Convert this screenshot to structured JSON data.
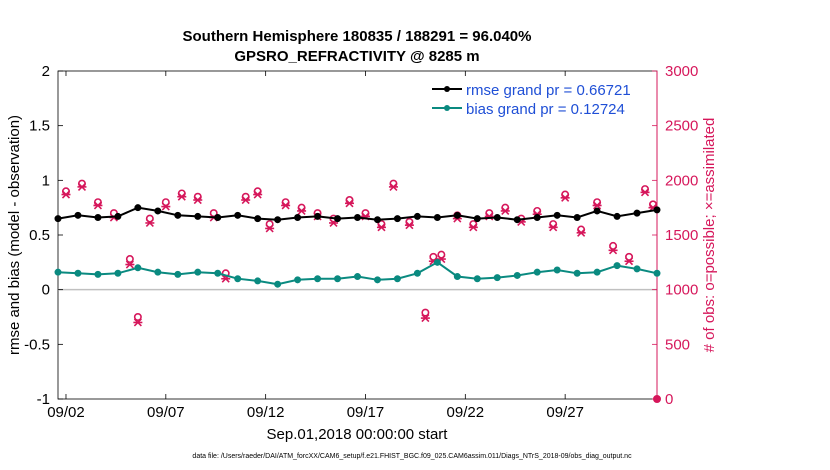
{
  "title_line1": "Southern Hemisphere 180835 / 188291 = 96.040%",
  "title_line2": "GPSRO_REFRACTIVITY @ 8285 m",
  "xlabel": "Sep.01,2018 00:00:00 start",
  "ylabel_left": "rmse and bias (model - observation)",
  "ylabel_right": "# of obs: o=possible; ×=assimilated",
  "footer": "data file: /Users/raeder/DAI/ATM_forcXX/CAM6_setup/f.e21.FHIST_BGC.f09_025.CAM6assim.011/Diags_NTrS_2018-09/obs_diag_output.nc",
  "legend": {
    "rmse": "rmse grand pr = 0.66721",
    "bias": "bias grand pr = 0.12724"
  },
  "colors": {
    "rmse": "#000000",
    "bias": "#0a8a80",
    "obs": "#d6175b",
    "legend_text": "#1f4fd6",
    "zero_line": "#c0c0c0"
  },
  "chart_data": {
    "type": "line",
    "x_unit": "day since Sep.01,2018 00:00",
    "x_ticks": [
      {
        "value": 1,
        "label": "09/02"
      },
      {
        "value": 6,
        "label": "09/07"
      },
      {
        "value": 11,
        "label": "09/12"
      },
      {
        "value": 16,
        "label": "09/17"
      },
      {
        "value": 21,
        "label": "09/22"
      },
      {
        "value": 26,
        "label": "09/27"
      }
    ],
    "xlim": [
      0.6,
      30.6
    ],
    "ylim_left": [
      -1,
      2
    ],
    "yticks_left": [
      {
        "value": -1,
        "label": "-1"
      },
      {
        "value": -0.5,
        "label": "-0.5"
      },
      {
        "value": 0,
        "label": "0"
      },
      {
        "value": 0.5,
        "label": "0.5"
      },
      {
        "value": 1,
        "label": "1"
      },
      {
        "value": 1.5,
        "label": "1.5"
      },
      {
        "value": 2,
        "label": "2"
      }
    ],
    "ylim_right": [
      0,
      3000
    ],
    "yticks_right": [
      {
        "value": 0,
        "label": "0"
      },
      {
        "value": 500,
        "label": "500"
      },
      {
        "value": 1000,
        "label": "1000"
      },
      {
        "value": 1500,
        "label": "1500"
      },
      {
        "value": 2000,
        "label": "2000"
      },
      {
        "value": 2500,
        "label": "2500"
      },
      {
        "value": 3000,
        "label": "3000"
      }
    ],
    "series": [
      {
        "name": "rmse",
        "axis": "left",
        "x": [
          0.6,
          1.6,
          2.6,
          3.6,
          4.6,
          5.6,
          6.6,
          7.6,
          8.6,
          9.6,
          10.6,
          11.6,
          12.6,
          13.6,
          14.6,
          15.6,
          16.6,
          17.6,
          18.6,
          19.6,
          20.6,
          21.6,
          22.6,
          23.6,
          24.6,
          25.6,
          26.6,
          27.6,
          28.6,
          29.6,
          30.6
        ],
        "values": [
          0.65,
          0.68,
          0.66,
          0.67,
          0.75,
          0.72,
          0.68,
          0.67,
          0.66,
          0.68,
          0.65,
          0.64,
          0.66,
          0.67,
          0.65,
          0.66,
          0.64,
          0.65,
          0.67,
          0.66,
          0.68,
          0.65,
          0.66,
          0.64,
          0.66,
          0.68,
          0.66,
          0.72,
          0.67,
          0.7,
          0.73
        ]
      },
      {
        "name": "bias",
        "axis": "left",
        "x": [
          0.6,
          1.6,
          2.6,
          3.6,
          4.6,
          5.6,
          6.6,
          7.6,
          8.6,
          9.6,
          10.6,
          11.6,
          12.6,
          13.6,
          14.6,
          15.6,
          16.6,
          17.6,
          18.6,
          19.6,
          20.6,
          21.6,
          22.6,
          23.6,
          24.6,
          25.6,
          26.6,
          27.6,
          28.6,
          29.6,
          30.6
        ],
        "values": [
          0.16,
          0.15,
          0.14,
          0.15,
          0.2,
          0.16,
          0.14,
          0.16,
          0.15,
          0.1,
          0.08,
          0.05,
          0.09,
          0.1,
          0.1,
          0.12,
          0.09,
          0.1,
          0.15,
          0.25,
          0.12,
          0.1,
          0.11,
          0.13,
          0.16,
          0.18,
          0.15,
          0.16,
          0.22,
          0.19,
          0.15
        ]
      },
      {
        "name": "obs possible",
        "axis": "right",
        "marker": "o",
        "x": [
          1.0,
          1.8,
          2.6,
          3.4,
          4.2,
          4.6,
          5.2,
          6.0,
          6.8,
          7.6,
          8.4,
          9.0,
          10.0,
          10.6,
          11.2,
          12.0,
          12.8,
          13.6,
          14.4,
          15.2,
          16.0,
          16.8,
          17.4,
          18.2,
          19.0,
          19.4,
          19.8,
          20.6,
          21.4,
          22.2,
          23.0,
          23.8,
          24.6,
          25.4,
          26.0,
          26.8,
          27.6,
          28.4,
          29.2,
          30.0,
          30.4
        ],
        "values": [
          1900,
          1970,
          1800,
          1700,
          1280,
          750,
          1650,
          1800,
          1880,
          1850,
          1700,
          1150,
          1850,
          1900,
          1600,
          1800,
          1750,
          1700,
          1650,
          1820,
          1700,
          1600,
          1970,
          1620,
          790,
          1300,
          1320,
          1680,
          1600,
          1700,
          1750,
          1650,
          1720,
          1600,
          1870,
          1550,
          1800,
          1400,
          1300,
          1920,
          1780
        ]
      },
      {
        "name": "obs assimilated",
        "axis": "right",
        "marker": "x",
        "x": [
          1.0,
          1.8,
          2.6,
          3.4,
          4.2,
          4.6,
          5.2,
          6.0,
          6.8,
          7.6,
          8.4,
          9.0,
          10.0,
          10.6,
          11.2,
          12.0,
          12.8,
          13.6,
          14.4,
          15.2,
          16.0,
          16.8,
          17.4,
          18.2,
          19.0,
          19.4,
          19.8,
          20.6,
          21.4,
          22.2,
          23.0,
          23.8,
          24.6,
          25.4,
          26.0,
          26.8,
          27.6,
          28.4,
          29.2,
          30.0,
          30.4
        ],
        "values": [
          1870,
          1940,
          1770,
          1660,
          1230,
          700,
          1610,
          1760,
          1850,
          1820,
          1660,
          1100,
          1820,
          1870,
          1560,
          1770,
          1720,
          1670,
          1610,
          1790,
          1670,
          1570,
          1940,
          1590,
          740,
          1260,
          1280,
          1650,
          1570,
          1670,
          1720,
          1620,
          1690,
          1570,
          1840,
          1520,
          1770,
          1360,
          1260,
          1890,
          1750
        ]
      }
    ]
  }
}
